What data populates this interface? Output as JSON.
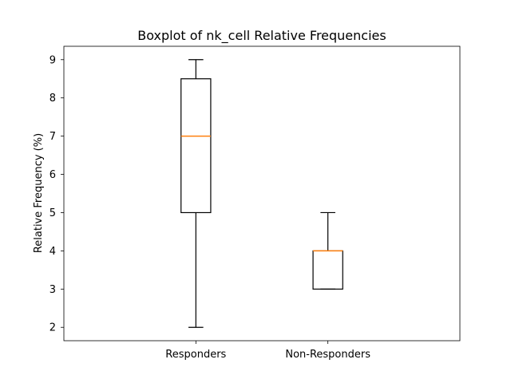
{
  "chart_data": {
    "type": "boxplot",
    "title": "Boxplot of nk_cell Relative Frequencies",
    "xlabel": "",
    "ylabel": "Relative Frequency (%)",
    "ylim": [
      1.65,
      9.35
    ],
    "yticks": [
      2,
      3,
      4,
      5,
      6,
      7,
      8,
      9
    ],
    "grid": false,
    "categories": [
      "Responders",
      "Non-Responders"
    ],
    "boxes": [
      {
        "category": "Responders",
        "whisker_low": 2,
        "q1": 5,
        "median": 7,
        "q3": 8.5,
        "whisker_high": 9
      },
      {
        "category": "Non-Responders",
        "whisker_low": 3,
        "q1": 3,
        "median": 4,
        "q3": 4,
        "whisker_high": 5
      }
    ],
    "colors": {
      "box": "#000000",
      "median": "#ff7f0e"
    }
  }
}
